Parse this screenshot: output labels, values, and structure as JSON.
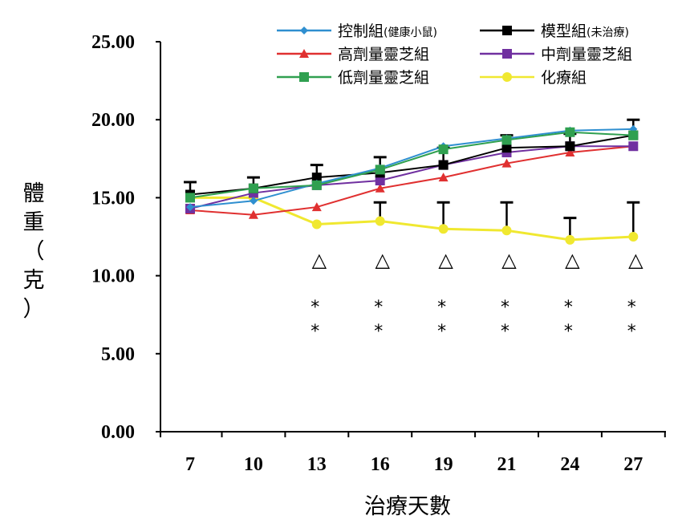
{
  "chart_data": {
    "type": "line",
    "title": "",
    "xlabel": "治療天數",
    "ylabel": [
      "體",
      "重",
      "（",
      "克",
      "）"
    ],
    "categories": [
      "7",
      "10",
      "13",
      "16",
      "19",
      "21",
      "24",
      "27"
    ],
    "ylim": [
      0,
      25
    ],
    "yticks": [
      "0.00",
      "5.00",
      "10.00",
      "15.00",
      "20.00",
      "25.00"
    ],
    "grid": false,
    "legend_position": "top-right",
    "series": [
      {
        "name": "控制組(健康小鼠)",
        "color": "#2f8fd0",
        "marker": "diamond",
        "values": [
          14.4,
          14.8,
          15.9,
          16.9,
          18.3,
          18.8,
          19.3,
          19.4
        ]
      },
      {
        "name": "模型組(未治療)",
        "color": "#000000",
        "marker": "square",
        "values": [
          15.2,
          15.6,
          16.3,
          16.6,
          17.1,
          18.2,
          18.3,
          19.0
        ],
        "error_upper": [
          0.8,
          0.7,
          0.8,
          1.0,
          1.1,
          0.8,
          0.8,
          1.0
        ]
      },
      {
        "name": "高劑量靈芝組",
        "color": "#e03030",
        "marker": "triangle",
        "values": [
          14.2,
          13.9,
          14.4,
          15.6,
          16.3,
          17.2,
          17.9,
          18.3
        ]
      },
      {
        "name": "中劑量靈芝組",
        "color": "#7030a0",
        "marker": "square",
        "values": [
          14.3,
          15.3,
          15.8,
          16.1,
          17.1,
          17.9,
          18.3,
          18.3
        ]
      },
      {
        "name": "低劑量靈芝組",
        "color": "#30a050",
        "marker": "square",
        "values": [
          15.0,
          15.6,
          15.8,
          16.8,
          18.1,
          18.7,
          19.2,
          19.0
        ]
      },
      {
        "name": "化療組",
        "color": "#f0e830",
        "marker": "circle",
        "values": [
          15.0,
          15.0,
          13.3,
          13.5,
          13.0,
          12.9,
          12.3,
          12.5
        ],
        "error_upper": [
          0,
          0,
          0,
          1.2,
          1.7,
          1.8,
          1.4,
          2.2
        ]
      }
    ],
    "annotations": {
      "triangle_symbol": "△",
      "star_symbol": "*",
      "triangle_at": [
        "13",
        "16",
        "19",
        "21",
        "24",
        "27"
      ],
      "double_star_at": [
        "13",
        "16",
        "19",
        "21",
        "24",
        "27"
      ]
    }
  }
}
